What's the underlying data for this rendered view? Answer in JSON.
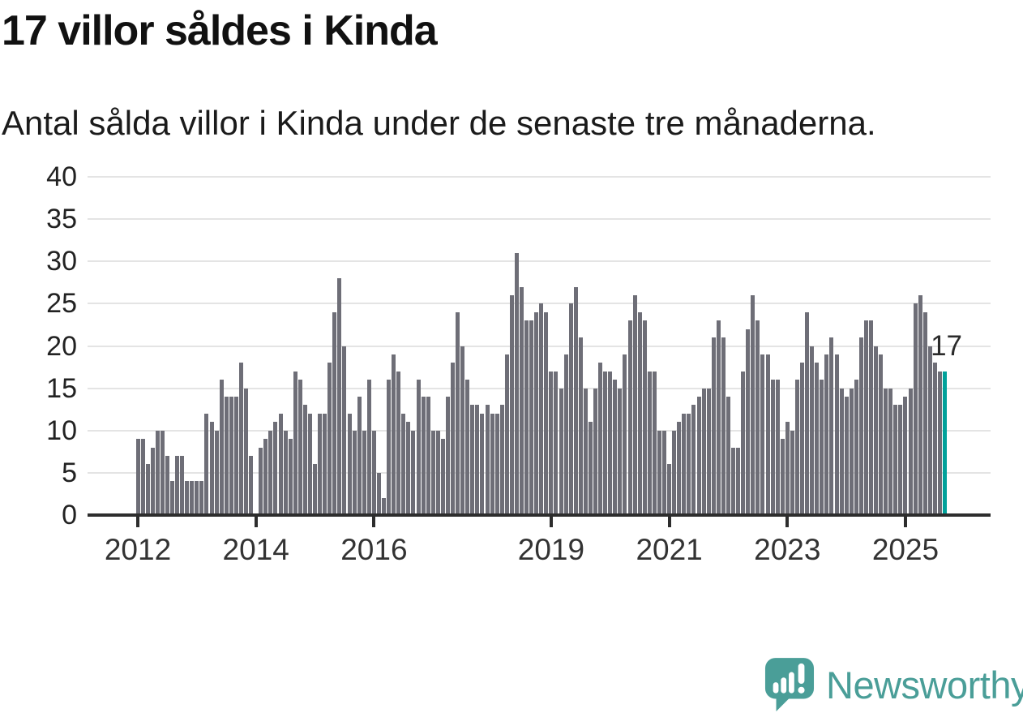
{
  "title": "17 villor såldes i Kinda",
  "subtitle": "Antal sålda villor i Kinda under de senaste tre månaderna.",
  "annotation": {
    "label": "17"
  },
  "footer": {
    "brand": "Newsworthy"
  },
  "colors": {
    "bar": "#6e6e77",
    "highlight": "#00a19a",
    "gridline": "#e4e4e4",
    "axis": "#2d2d2d",
    "logo_teal": "#4a9e98",
    "title_text": "#111111",
    "tick_text": "#333333"
  },
  "chart_data": {
    "type": "bar",
    "title": "17 villor såldes i Kinda",
    "xlabel": "",
    "ylabel": "",
    "ylim": [
      0,
      40
    ],
    "yticks": [
      0,
      5,
      10,
      15,
      20,
      25,
      30,
      35,
      40
    ],
    "grid": "horizontal",
    "legend": "none",
    "x_unit": "month",
    "x_start": {
      "year": 2012,
      "month": 1
    },
    "x_end": {
      "year": 2025,
      "month": 9
    },
    "x_tick_labels": [
      {
        "label": "2012",
        "month": 0
      },
      {
        "label": "2014",
        "month": 24
      },
      {
        "label": "2016",
        "month": 48
      },
      {
        "label": "2019",
        "month": 84
      },
      {
        "label": "2021",
        "month": 108
      },
      {
        "label": "2023",
        "month": 132
      },
      {
        "label": "2025",
        "month": 156
      }
    ],
    "values": [
      9,
      9,
      6,
      8,
      10,
      10,
      7,
      4,
      7,
      7,
      4,
      4,
      4,
      4,
      12,
      11,
      10,
      16,
      14,
      14,
      14,
      18,
      15,
      7,
      0,
      8,
      9,
      10,
      11,
      12,
      10,
      9,
      17,
      16,
      13,
      12,
      6,
      12,
      12,
      18,
      24,
      28,
      20,
      12,
      10,
      14,
      10,
      16,
      10,
      5,
      2,
      16,
      19,
      17,
      12,
      11,
      10,
      16,
      14,
      14,
      10,
      10,
      9,
      14,
      18,
      24,
      20,
      16,
      13,
      13,
      12,
      13,
      12,
      12,
      13,
      19,
      26,
      31,
      27,
      23,
      23,
      24,
      25,
      24,
      17,
      17,
      15,
      19,
      25,
      27,
      21,
      15,
      11,
      15,
      18,
      17,
      17,
      16,
      15,
      19,
      23,
      26,
      24,
      23,
      17,
      17,
      10,
      10,
      6,
      10,
      11,
      12,
      12,
      13,
      14,
      15,
      15,
      21,
      23,
      21,
      14,
      8,
      8,
      17,
      22,
      26,
      23,
      19,
      19,
      16,
      16,
      9,
      11,
      10,
      16,
      18,
      24,
      20,
      18,
      16,
      19,
      21,
      19,
      15,
      14,
      15,
      16,
      21,
      23,
      23,
      20,
      19,
      15,
      15,
      13,
      13,
      14,
      15,
      25,
      26,
      24,
      20,
      18,
      17,
      17
    ],
    "highlight": {
      "index": 164,
      "value": 17,
      "label": "17"
    }
  }
}
